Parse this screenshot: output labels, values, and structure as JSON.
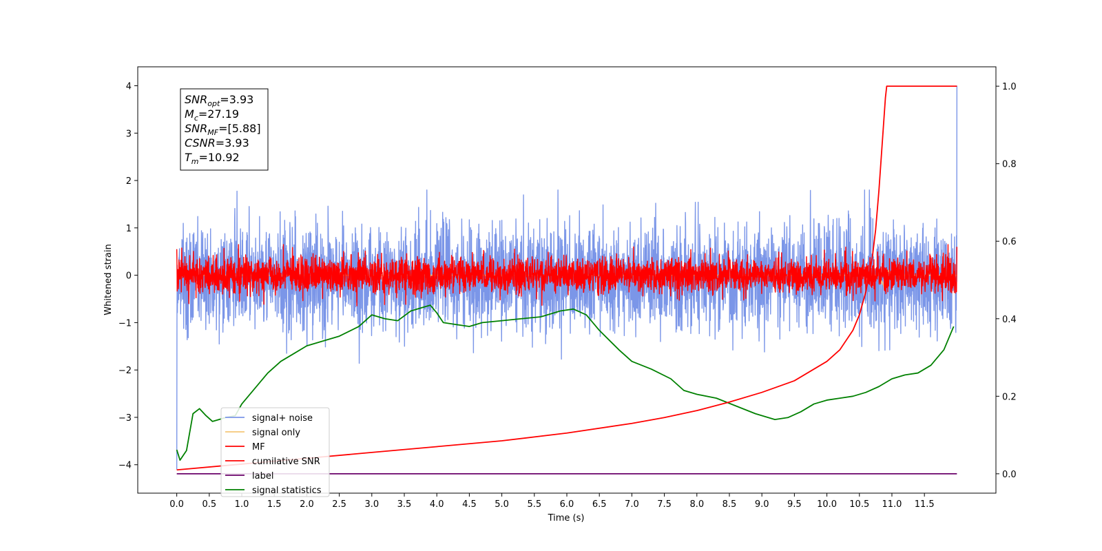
{
  "chart_data": {
    "type": "line",
    "xlabel": "Time (s)",
    "ylabel": "Whitened strain",
    "xlim": [
      -0.6,
      12.6
    ],
    "ylim": [
      -4.6,
      4.4
    ],
    "y2lim": [
      -0.05,
      1.05
    ],
    "xticks": [
      "0.0",
      "0.5",
      "1.0",
      "1.5",
      "2.0",
      "2.5",
      "3.0",
      "3.5",
      "4.0",
      "4.5",
      "5.0",
      "5.5",
      "6.0",
      "6.5",
      "7.0",
      "7.5",
      "8.0",
      "8.5",
      "9.0",
      "9.5",
      "10.0",
      "10.5",
      "11.0",
      "11.5"
    ],
    "yticks": [
      "4",
      "3",
      "2",
      "1",
      "0",
      "−1",
      "−2",
      "−3",
      "−4"
    ],
    "y2ticks": [
      "1.0",
      "0.8",
      "0.6",
      "0.4",
      "0.2",
      "0.0"
    ],
    "annotation": [
      {
        "base": "SNR",
        "sub": "opt",
        "value": "=3.93"
      },
      {
        "base": "M",
        "sub": "c",
        "value": "=27.19"
      },
      {
        "base": "SNR",
        "sub": "MF",
        "value": "=[5.88]"
      },
      {
        "base": "CSNR",
        "sub": "",
        "value": "=3.93"
      },
      {
        "base": "T",
        "sub": "m",
        "value": "=10.92"
      }
    ],
    "legend_position": "lower-left",
    "series": [
      {
        "name": "signal+ noise",
        "color": "#7b96e8",
        "axis": "left",
        "kind": "noise",
        "x_range": [
          0,
          12
        ],
        "mean": -0.05,
        "spread": 1.0,
        "start_value": -4.1,
        "end_value": 4.0
      },
      {
        "name": "signal only",
        "color": "#f5c777",
        "axis": "left",
        "kind": "signal",
        "x": [
          0,
          10.8,
          10.9,
          10.95,
          11.0,
          12
        ],
        "y": [
          0,
          0,
          -0.3,
          0.1,
          0,
          0
        ]
      },
      {
        "name": "MF",
        "color": "#ff0000",
        "axis": "left",
        "kind": "noise",
        "x_range": [
          0,
          12
        ],
        "mean": 0.0,
        "spread": 0.35,
        "start_value": 0.55,
        "end_value": 0.6
      },
      {
        "name": "cumilative SNR",
        "color": "#ff0000",
        "axis": "right",
        "x": [
          0,
          1,
          2,
          3,
          4,
          5,
          6,
          7,
          7.5,
          8,
          8.5,
          9,
          9.5,
          10,
          10.2,
          10.4,
          10.5,
          10.6,
          10.7,
          10.75,
          10.8,
          10.85,
          10.9,
          10.92,
          12
        ],
        "y": [
          0.01,
          0.025,
          0.04,
          0.055,
          0.07,
          0.085,
          0.105,
          0.13,
          0.145,
          0.163,
          0.185,
          0.21,
          0.24,
          0.29,
          0.32,
          0.37,
          0.41,
          0.47,
          0.56,
          0.63,
          0.73,
          0.85,
          0.97,
          1.0,
          1.0
        ]
      },
      {
        "name": "label",
        "color": "#6a006a",
        "axis": "right",
        "x": [
          0,
          12
        ],
        "y": [
          0,
          0
        ]
      },
      {
        "name": "signal statistics",
        "color": "#008000",
        "axis": "right",
        "x": [
          0,
          0.05,
          0.15,
          0.25,
          0.35,
          0.45,
          0.55,
          0.65,
          0.75,
          0.9,
          1.0,
          1.2,
          1.4,
          1.6,
          1.8,
          2.0,
          2.2,
          2.5,
          2.8,
          3.0,
          3.2,
          3.4,
          3.6,
          3.8,
          3.9,
          4.0,
          4.1,
          4.3,
          4.5,
          4.7,
          5.0,
          5.3,
          5.6,
          5.9,
          6.1,
          6.3,
          6.5,
          6.8,
          7.0,
          7.3,
          7.6,
          7.8,
          8.0,
          8.3,
          8.6,
          8.9,
          9.2,
          9.4,
          9.6,
          9.8,
          10.0,
          10.2,
          10.4,
          10.6,
          10.8,
          11.0,
          11.2,
          11.4,
          11.6,
          11.8,
          11.95
        ],
        "y": [
          0.062,
          0.035,
          0.06,
          0.155,
          0.168,
          0.15,
          0.135,
          0.14,
          0.145,
          0.15,
          0.18,
          0.22,
          0.26,
          0.29,
          0.31,
          0.33,
          0.34,
          0.355,
          0.38,
          0.41,
          0.4,
          0.395,
          0.42,
          0.43,
          0.435,
          0.415,
          0.39,
          0.385,
          0.38,
          0.39,
          0.395,
          0.4,
          0.405,
          0.42,
          0.425,
          0.41,
          0.37,
          0.32,
          0.29,
          0.27,
          0.245,
          0.215,
          0.205,
          0.195,
          0.175,
          0.155,
          0.14,
          0.145,
          0.16,
          0.18,
          0.19,
          0.195,
          0.2,
          0.21,
          0.225,
          0.245,
          0.255,
          0.26,
          0.28,
          0.32,
          0.38
        ]
      }
    ]
  }
}
